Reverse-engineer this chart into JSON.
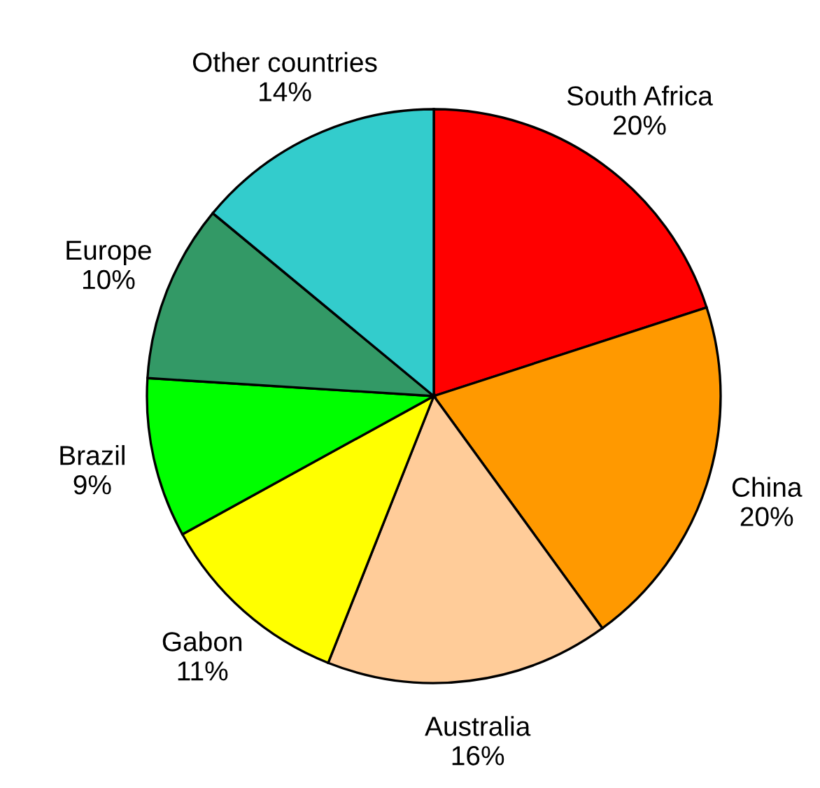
{
  "chart_data": {
    "type": "pie",
    "categories": [
      "South Africa",
      "China",
      "Australia",
      "Gabon",
      "Brazil",
      "Europe",
      "Other countries"
    ],
    "values": [
      20,
      20,
      16,
      11,
      9,
      10,
      14
    ],
    "value_labels": [
      "20%",
      "20%",
      "16%",
      "11%",
      "9%",
      "10%",
      "14%"
    ],
    "colors": [
      "#ff0000",
      "#ff9900",
      "#ffcc99",
      "#ffff00",
      "#00ff00",
      "#339966",
      "#33cccc"
    ]
  }
}
